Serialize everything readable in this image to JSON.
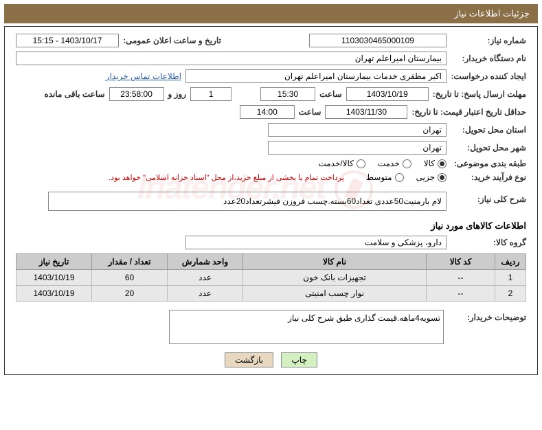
{
  "header": {
    "title": "جزئیات اطلاعات نیاز"
  },
  "fields": {
    "need_no_label": "شماره نیاز:",
    "need_no": "1103030465000109",
    "announce_label": "تاریخ و ساعت اعلان عمومی:",
    "announce_val": "1403/10/17 - 15:15",
    "buyer_org_label": "نام دستگاه خریدار:",
    "buyer_org": "بیمارستان امیراعلم تهران",
    "requester_label": "ایجاد کننده درخواست:",
    "requester": "اکبر مظفری خدمات بیمارستان امیراعلم تهران",
    "contact_link": "اطلاعات تماس خریدار",
    "deadline_label": "مهلت ارسال پاسخ: تا تاریخ:",
    "deadline_date": "1403/10/19",
    "time_label": "ساعت",
    "deadline_time": "15:30",
    "remain_days": "1",
    "remain_days_label": "روز و",
    "remain_time": "23:58:00",
    "remain_suffix": "ساعت باقی مانده",
    "validity_label": "حداقل تاریخ اعتبار قیمت: تا تاریخ:",
    "validity_date": "1403/11/30",
    "validity_time": "14:00",
    "province_label": "استان محل تحویل:",
    "province": "تهران",
    "city_label": "شهر محل تحویل:",
    "city": "تهران",
    "category_label": "طبقه بندی موضوعی:",
    "cat_goods": "کالا",
    "cat_service": "خدمت",
    "cat_both": "کالا/خدمت",
    "process_label": "نوع فرآیند خرید:",
    "proc_partial": "جزیی",
    "proc_medium": "متوسط",
    "process_note": "پرداخت تمام یا بخشی از مبلغ خرید،از محل \"اسناد خزانه اسلامی\" خواهد بود.",
    "summary_label": "شرح کلی نیاز:",
    "summary": "لام بارمنیت50عددی تعداد60بسته.چسب فروزن فیشرتعداد20عدد",
    "goods_section": "اطلاعات کالاهای مورد نیاز",
    "group_label": "گروه کالا:",
    "group": "دارو، پزشکی و سلامت",
    "buyer_desc_label": "توضیحات خریدار:",
    "buyer_desc": "تسویه4ماهه.قیمت گذاری طبق شرح کلی نیاز"
  },
  "table": {
    "headers": {
      "row": "ردیف",
      "code": "کد کالا",
      "name": "نام کالا",
      "unit": "واحد شمارش",
      "qty": "تعداد / مقدار",
      "date": "تاریخ نیاز"
    },
    "rows": [
      {
        "n": "1",
        "code": "--",
        "name": "تجهیزات بانک خون",
        "unit": "عدد",
        "qty": "60",
        "date": "1403/10/19"
      },
      {
        "n": "2",
        "code": "--",
        "name": "نوار چسب امنیتی",
        "unit": "عدد",
        "qty": "20",
        "date": "1403/10/19"
      }
    ]
  },
  "buttons": {
    "print": "چاپ",
    "back": "بازگشت"
  }
}
